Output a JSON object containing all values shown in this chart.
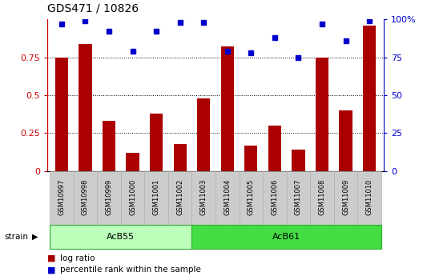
{
  "title": "GDS471 / 10826",
  "samples": [
    "GSM10997",
    "GSM10998",
    "GSM10999",
    "GSM11000",
    "GSM11001",
    "GSM11002",
    "GSM11003",
    "GSM11004",
    "GSM11005",
    "GSM11006",
    "GSM11007",
    "GSM11008",
    "GSM11009",
    "GSM11010"
  ],
  "log_ratio": [
    0.75,
    0.84,
    0.33,
    0.12,
    0.38,
    0.18,
    0.48,
    0.82,
    0.17,
    0.3,
    0.14,
    0.75,
    0.4,
    0.96
  ],
  "percentile_rank": [
    97,
    99,
    92,
    79,
    92,
    98,
    98,
    79,
    78,
    88,
    75,
    97,
    86,
    99
  ],
  "groups": [
    {
      "label": "AcB55",
      "start": 0,
      "end": 6,
      "color": "#bbffbb"
    },
    {
      "label": "AcB61",
      "start": 6,
      "end": 14,
      "color": "#44dd44"
    }
  ],
  "bar_color": "#aa0000",
  "dot_color": "#0000cc",
  "left_axis_color": "#cc0000",
  "right_axis_color": "#0000cc",
  "ylim_left": [
    0,
    1.0
  ],
  "ylim_right": [
    0,
    100
  ],
  "yticks_left": [
    0,
    0.25,
    0.5,
    0.75
  ],
  "ytick_labels_left": [
    "0",
    "0.25",
    "0.5",
    "0.75"
  ],
  "yticks_right": [
    0,
    25,
    50,
    75,
    100
  ],
  "grid_lines": [
    0.25,
    0.5,
    0.75
  ],
  "legend_items": [
    {
      "label": "log ratio",
      "color": "#aa0000"
    },
    {
      "label": "percentile rank within the sample",
      "color": "#0000cc"
    }
  ],
  "strain_label": "strain",
  "background_color": "#ffffff",
  "tick_label_bg": "#cccccc"
}
